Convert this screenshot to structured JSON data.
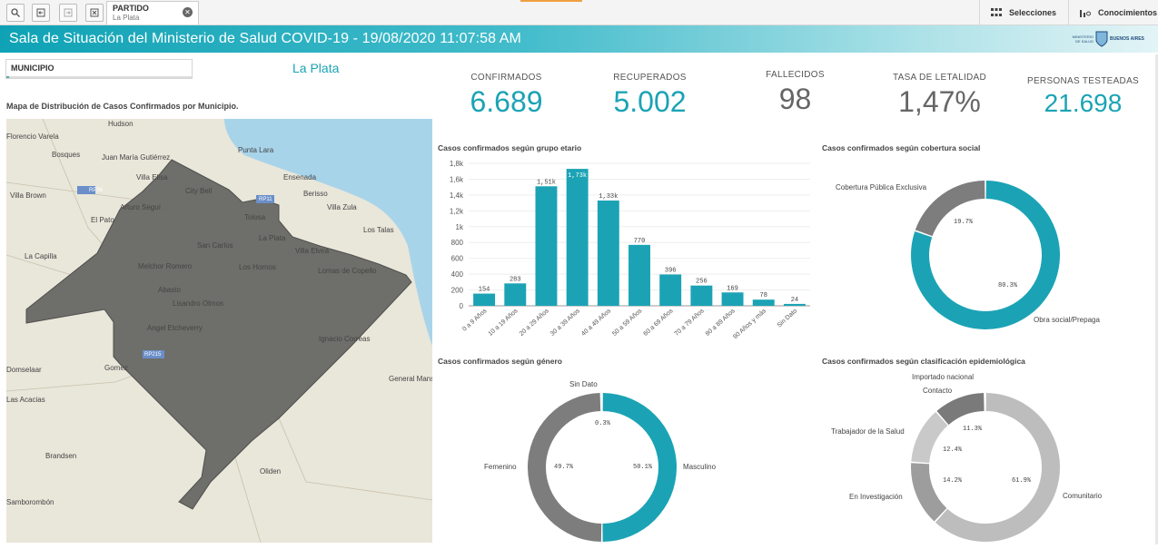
{
  "toolbar": {
    "tab_title": "PARTIDO",
    "tab_sub": "La Plata",
    "selections_label": "Selecciones",
    "insights_label": "Conocimientos"
  },
  "header": {
    "title": "Sala de Situación del Ministerio de Salud COVID-19 - 19/08/2020 11:07:58 AM",
    "logo_left": "MINISTERIO DE SALUD",
    "logo_right": "BUENOS AIRES"
  },
  "filter": {
    "label": "MUNICIPIO",
    "selected": "La Plata"
  },
  "map": {
    "title": "Mapa de Distribución de Casos Confirmados por Municipio.",
    "places": [
      "Hudson",
      "Florencio Varela",
      "Bosques",
      "Juan María Gutiérrez",
      "Punta Lara",
      "Villa Elisa",
      "Ensenada",
      "City Bell",
      "Berisso",
      "Villa Brown",
      "Arturo Seguí",
      "Villa Zula",
      "El Pato",
      "Tolosa",
      "Los Talas",
      "La Plata",
      "San Carlos",
      "Villa Elvira",
      "La Capilla",
      "Melchor Romero",
      "Los Hornos",
      "Lomas de Copello",
      "Abasto",
      "Lisandro Olmos",
      "Angel Etcheverry",
      "Ignacio Correas",
      "Domselaar",
      "Gomez",
      "General Mansilla",
      "Las Acacias",
      "Brandsen",
      "Oliden",
      "Samborombón"
    ],
    "roads": [
      "RP36",
      "RP11",
      "RP215"
    ]
  },
  "kpis": [
    {
      "label": "CONFIRMADOS",
      "value": "6.689",
      "color": "#1ba3b5"
    },
    {
      "label": "RECUPERADOS",
      "value": "5.002",
      "color": "#1ba3b5"
    },
    {
      "label": "FALLECIDOS",
      "value": "98",
      "color": "#666666"
    },
    {
      "label": "TASA DE LETALIDAD",
      "value": "1,47%",
      "color": "#666666"
    },
    {
      "label": "PERSONAS TESTEADAS",
      "value": "21.698",
      "color": "#1ba3b5"
    }
  ],
  "chart_data": [
    {
      "type": "bar",
      "title": "Casos confirmados según grupo etario",
      "categories": [
        "0 a 9 Años",
        "10 a 19 Años",
        "20 a 29 Años",
        "30 a 39 Años",
        "40 a 49 Años",
        "50 a 59 Años",
        "60 a 69 Años",
        "70 a 79 Años",
        "80 a 89 Años",
        "90 Años y más",
        "Sin Dato"
      ],
      "values": [
        154,
        283,
        1510,
        1730,
        1330,
        770,
        396,
        256,
        169,
        78,
        24
      ],
      "value_labels": [
        "154",
        "283",
        "1,51k",
        "1,73k",
        "1,33k",
        "770",
        "396",
        "256",
        "169",
        "78",
        "24"
      ],
      "ylim": [
        0,
        1800
      ],
      "y_ticks": [
        "0",
        "200",
        "400",
        "600",
        "800",
        "1k",
        "1,2k",
        "1,4k",
        "1,6k",
        "1,8k"
      ],
      "color": "#1ba3b5"
    },
    {
      "type": "pie",
      "title": "Casos confirmados según cobertura social",
      "labels": [
        "Obra social/Prepaga",
        "Cobertura Pública Exclusiva"
      ],
      "values": [
        80.3,
        19.7
      ],
      "value_labels": [
        "80.3%",
        "19.7%"
      ],
      "colors": [
        "#1ba3b5",
        "#7d7d7d"
      ]
    },
    {
      "type": "pie",
      "title": "Casos confirmados según género",
      "labels": [
        "Masculino",
        "Femenino",
        "Sin Dato"
      ],
      "values": [
        50.1,
        49.7,
        0.3
      ],
      "value_labels": [
        "50.1%",
        "49.7%",
        "0.3%"
      ],
      "colors": [
        "#1ba3b5",
        "#7d7d7d",
        "#bbbbbb"
      ]
    },
    {
      "type": "pie",
      "title": "Casos confirmados según clasificación epidemiológica",
      "labels": [
        "Comunitario",
        "En Investigación",
        "Trabajador de la Salud",
        "Contacto",
        "Importado nacional"
      ],
      "values": [
        61.9,
        14.2,
        12.4,
        11.3,
        0.2
      ],
      "value_labels": [
        "61.9%",
        "14.2%",
        "12.4%",
        "11.3%",
        ""
      ],
      "colors": [
        "#bdbdbd",
        "#9d9d9d",
        "#c9c9c9",
        "#7a7a7a",
        "#444444"
      ]
    }
  ]
}
